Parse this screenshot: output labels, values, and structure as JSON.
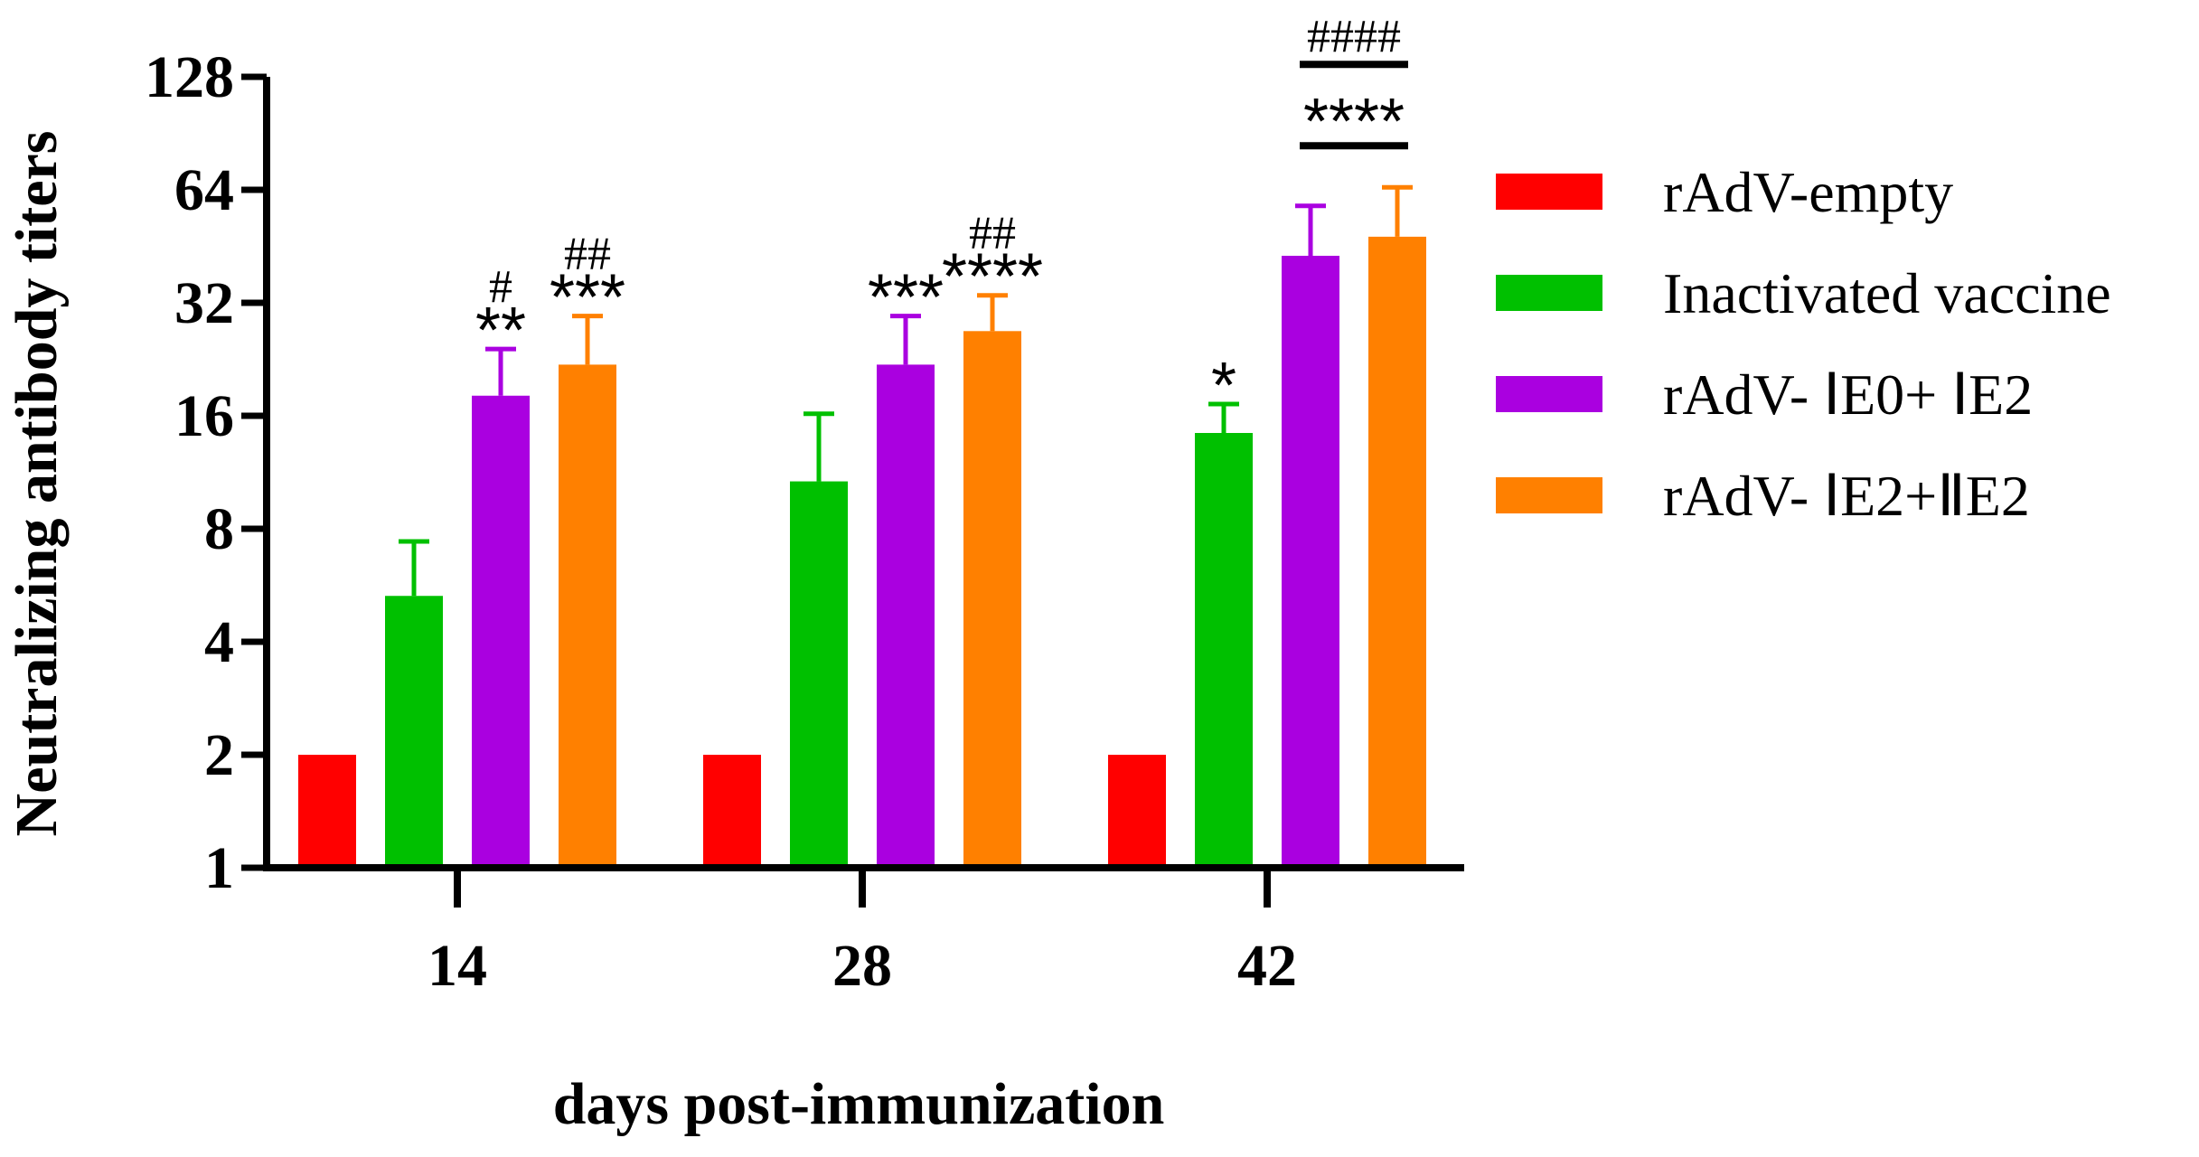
{
  "chart_data": {
    "type": "bar",
    "title": "",
    "xlabel": "days post-immunization",
    "ylabel": "Neutralizing antibody titers",
    "yscale": "log2",
    "ylim": [
      1,
      128
    ],
    "yticks": [
      "1",
      "2",
      "4",
      "8",
      "16",
      "32",
      "64",
      "128"
    ],
    "categories": [
      "14",
      "28",
      "42"
    ],
    "legend_position": "right",
    "series": [
      {
        "name": "rAdV-empty",
        "color": "#ff0000",
        "values": [
          2,
          2,
          2
        ],
        "error": [
          0,
          0,
          0
        ]
      },
      {
        "name": "Inactivated vaccine",
        "color": "#00c000",
        "values": [
          5.3,
          10.7,
          14.4
        ],
        "error": [
          2.1,
          5.5,
          2.8
        ]
      },
      {
        "name": "rAdV- ⅠE0+ ⅠE2",
        "color": "#aa00e0",
        "values": [
          18.1,
          21.9,
          42.7
        ],
        "error": [
          6.0,
          7.6,
          15.3
        ]
      },
      {
        "name": "rAdV- ⅠE2+ⅡE2",
        "color": "#ff8000",
        "values": [
          21.9,
          26.9,
          48.0
        ],
        "error": [
          7.6,
          6.6,
          17.0
        ]
      }
    ],
    "annotations": [
      {
        "group": 0,
        "series": 2,
        "stars": "**",
        "hashes": "#"
      },
      {
        "group": 0,
        "series": 3,
        "stars": "***",
        "hashes": "##"
      },
      {
        "group": 1,
        "series": 2,
        "stars": "***",
        "hashes": ""
      },
      {
        "group": 1,
        "series": 3,
        "stars": "****",
        "hashes": "##"
      },
      {
        "group": 2,
        "series": 1,
        "stars": "*",
        "hashes": ""
      }
    ],
    "comparison_brackets": [
      {
        "group": 2,
        "from_series": 2,
        "to_series": 3,
        "label": "****"
      },
      {
        "group": 2,
        "from_series": 2,
        "to_series": 3,
        "label": "####"
      }
    ]
  }
}
